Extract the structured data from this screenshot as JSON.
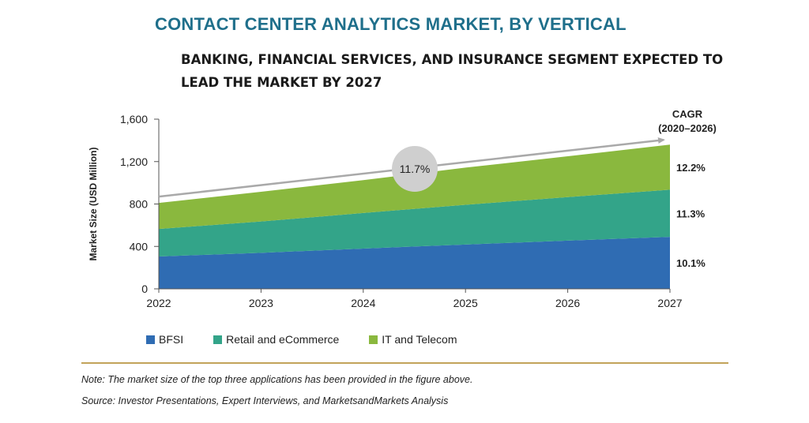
{
  "title": "CONTACT CENTER ANALYTICS MARKET, BY VERTICAL",
  "subtitle": "BANKING, FINANCIAL SERVICES, AND INSURANCE SEGMENT EXPECTED TO LEAD THE MARKET BY 2027",
  "note": "Note: The market size of the top three applications has been provided in the figure above.",
  "source": "Source: Investor Presentations, Expert Interviews, and MarketsandMarkets Analysis",
  "colors": {
    "bfsi": "#2f6cb3",
    "retail": "#33a489",
    "it": "#8ab83e",
    "arrow": "#a9a9a9",
    "bubble": "#cfcfcf",
    "title": "#1f6f8b",
    "rule": "#c2a35a"
  },
  "chart_data": {
    "type": "area",
    "stacked": true,
    "x": [
      "2022",
      "2023",
      "2024",
      "2025",
      "2026",
      "2027"
    ],
    "ylabel": "Market Size (USD Million)",
    "ylim": [
      0,
      1600
    ],
    "yticks": [
      "0",
      "400",
      "800",
      "1,200",
      "1,600"
    ],
    "ytick_values": [
      0,
      400,
      800,
      1200,
      1600
    ],
    "series": [
      {
        "name": "BFSI",
        "values": [
          305,
          340,
          380,
          418,
          455,
          490
        ],
        "cagr": "10.1%"
      },
      {
        "name": "Retail and eCommerce",
        "values": [
          260,
          295,
          335,
          375,
          410,
          445
        ],
        "cagr": "11.3%"
      },
      {
        "name": "IT and Telecom",
        "values": [
          245,
          280,
          310,
          350,
          385,
          425
        ],
        "cagr": "12.2%"
      }
    ],
    "overall_cagr": "11.7%",
    "cagr_header": [
      "CAGR",
      "(2020–2026)"
    ],
    "legend_position": "bottom"
  }
}
